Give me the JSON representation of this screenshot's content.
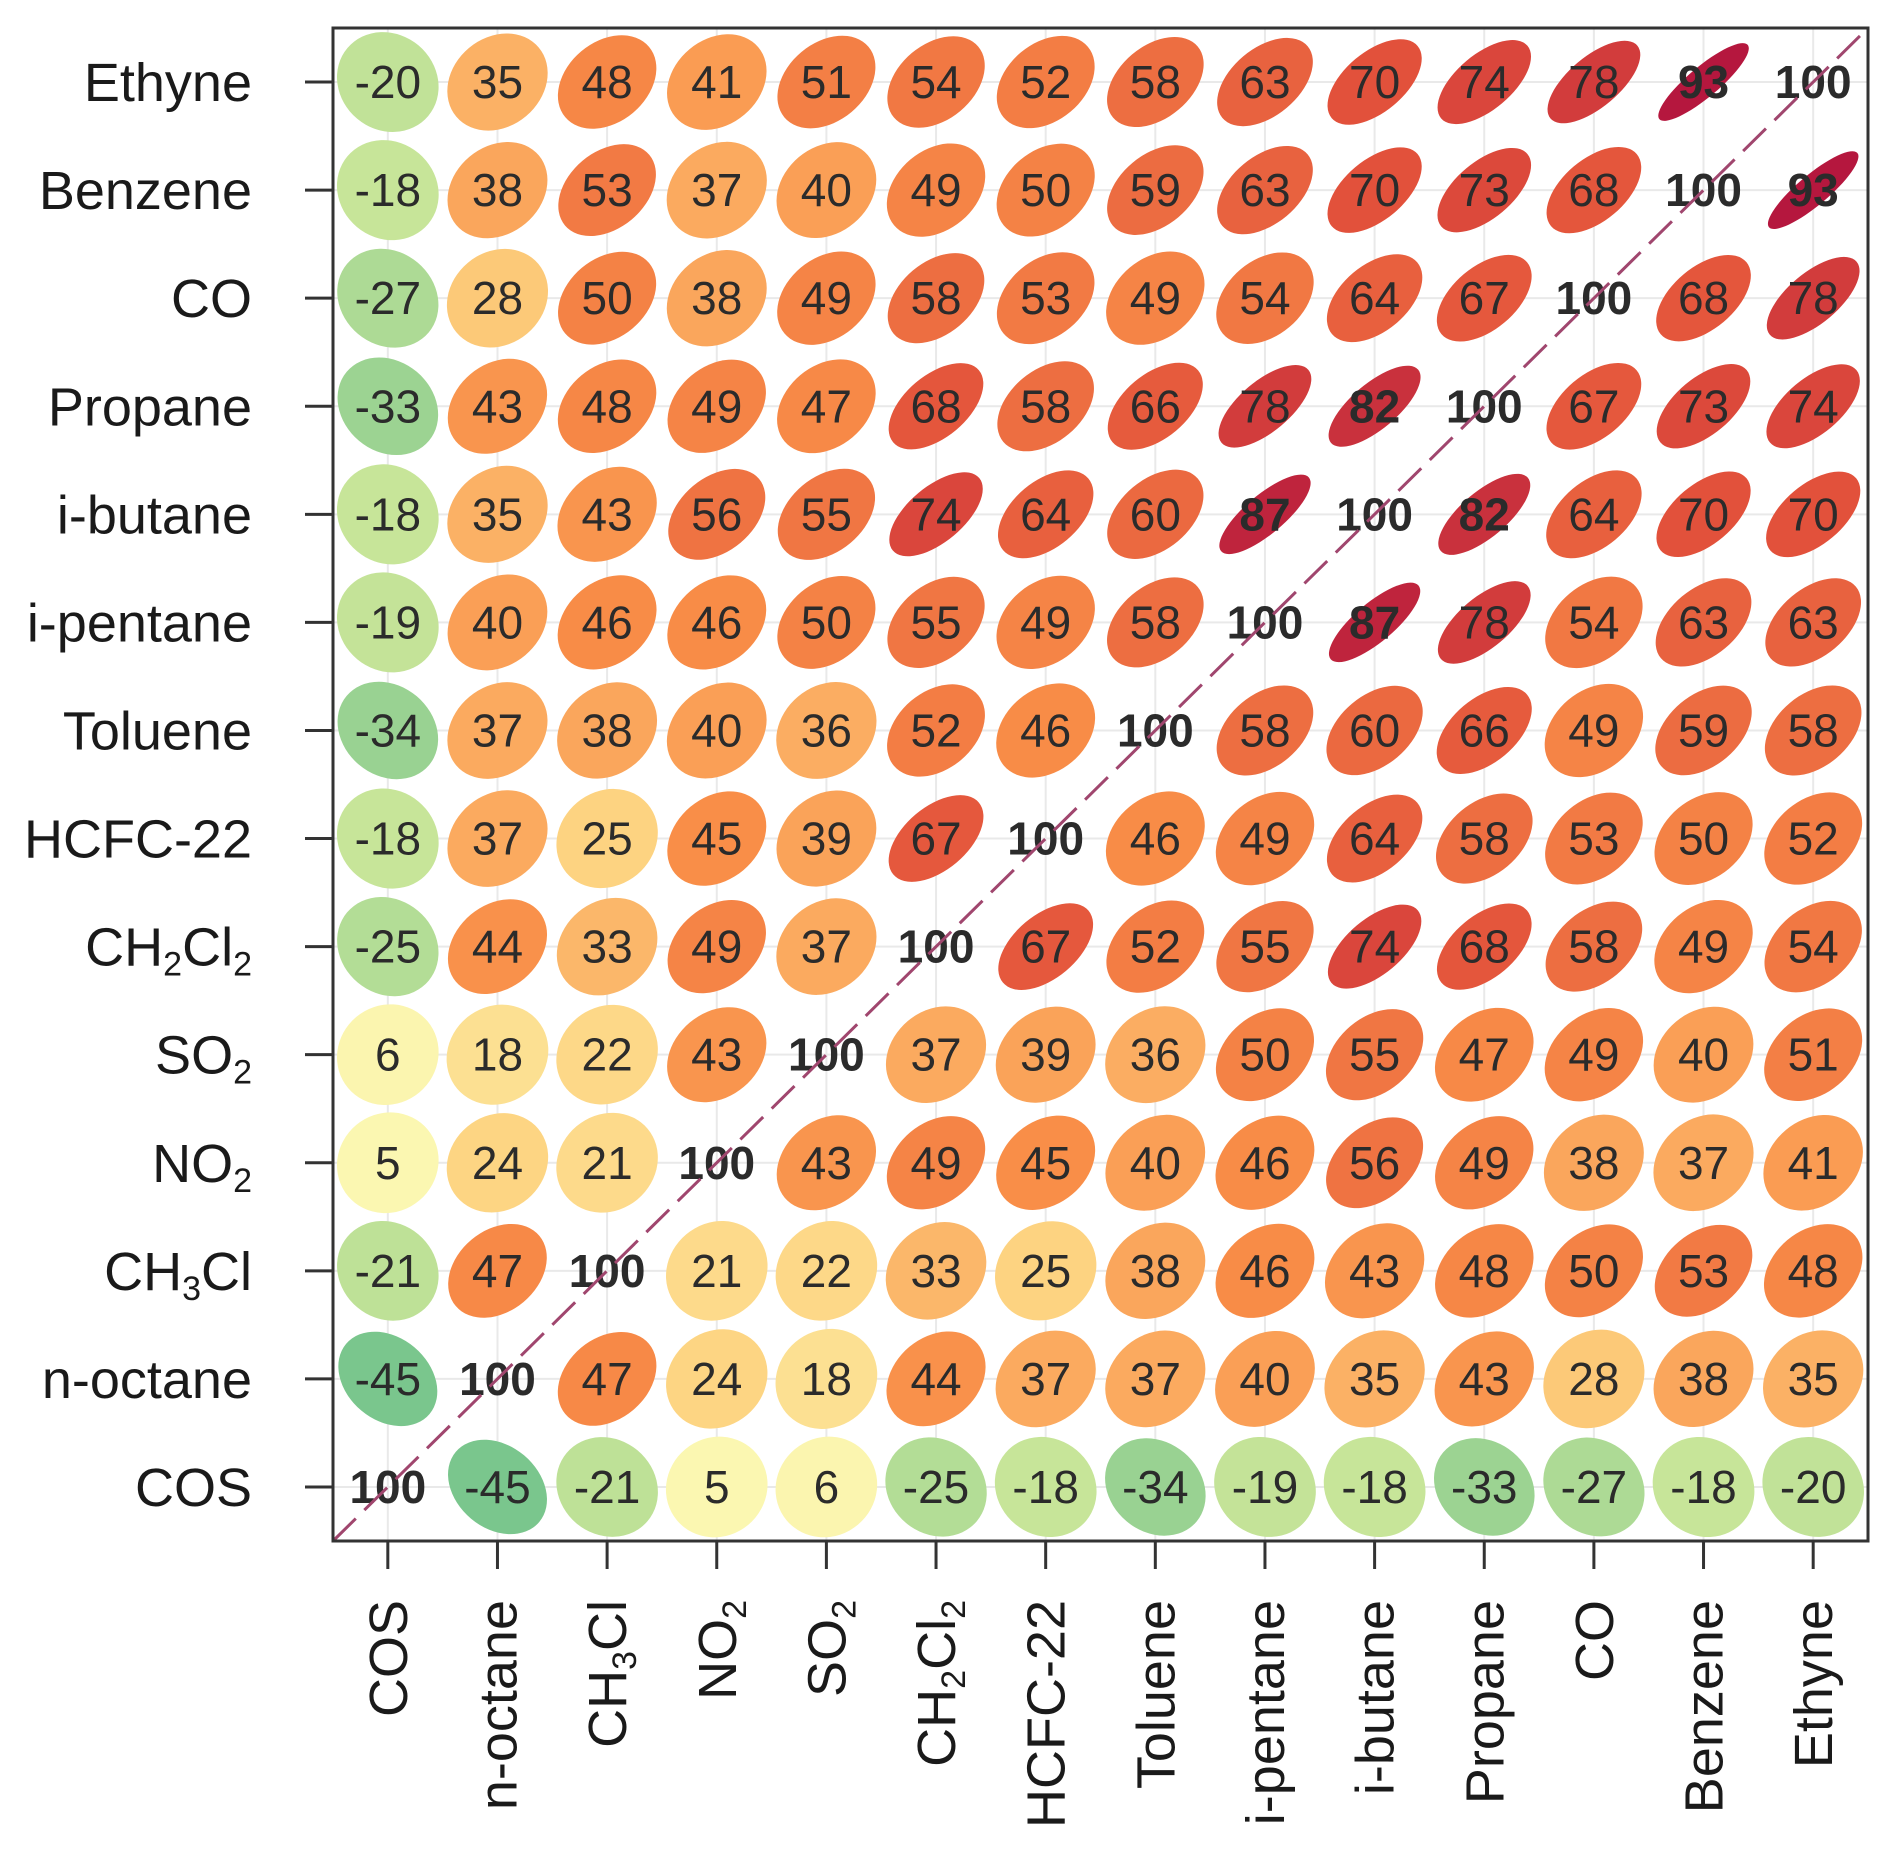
{
  "chart_data": {
    "type": "heatmap",
    "variables": [
      "COS",
      "n-octane",
      "CH₃Cl",
      "NO₂",
      "SO₂",
      "CH₂Cl₂",
      "HCFC-22",
      "Toluene",
      "i-pentane",
      "i-butane",
      "Propane",
      "CO",
      "Benzene",
      "Ethyne"
    ],
    "row_order": [
      "Ethyne",
      "Benzene",
      "CO",
      "Propane",
      "i-butane",
      "i-pentane",
      "Toluene",
      "HCFC-22",
      "CH₂Cl₂",
      "SO₂",
      "NO₂",
      "CH₃Cl",
      "n-octane",
      "COS"
    ],
    "matrix": [
      [
        100,
        -45,
        -21,
        5,
        6,
        -25,
        -18,
        -34,
        -19,
        -18,
        -33,
        -27,
        -18,
        -20
      ],
      [
        -45,
        100,
        47,
        24,
        18,
        44,
        37,
        37,
        40,
        35,
        43,
        28,
        38,
        35
      ],
      [
        -21,
        47,
        100,
        21,
        22,
        33,
        25,
        38,
        46,
        43,
        48,
        50,
        53,
        48
      ],
      [
        5,
        24,
        21,
        100,
        43,
        49,
        45,
        40,
        46,
        56,
        49,
        38,
        37,
        41
      ],
      [
        6,
        18,
        22,
        43,
        100,
        37,
        39,
        36,
        50,
        55,
        47,
        49,
        40,
        51
      ],
      [
        -25,
        44,
        33,
        49,
        37,
        100,
        67,
        52,
        55,
        74,
        68,
        58,
        49,
        54
      ],
      [
        -18,
        37,
        25,
        45,
        39,
        67,
        100,
        46,
        49,
        64,
        58,
        53,
        50,
        52
      ],
      [
        -34,
        37,
        38,
        40,
        36,
        52,
        46,
        100,
        58,
        60,
        66,
        49,
        59,
        58
      ],
      [
        -19,
        40,
        46,
        46,
        50,
        55,
        49,
        58,
        100,
        87,
        78,
        54,
        63,
        63
      ],
      [
        -18,
        35,
        43,
        56,
        55,
        74,
        64,
        60,
        87,
        100,
        82,
        64,
        70,
        70
      ],
      [
        -33,
        43,
        48,
        49,
        47,
        68,
        58,
        66,
        78,
        82,
        100,
        67,
        73,
        74
      ],
      [
        -27,
        28,
        50,
        38,
        49,
        58,
        53,
        49,
        54,
        64,
        67,
        100,
        68,
        78
      ],
      [
        -18,
        38,
        53,
        37,
        40,
        49,
        50,
        59,
        63,
        70,
        73,
        68,
        100,
        93
      ],
      [
        -20,
        35,
        48,
        41,
        51,
        54,
        52,
        58,
        63,
        70,
        74,
        78,
        93,
        100
      ]
    ],
    "diagonal_line": true,
    "grid": true,
    "colors": {
      "neg_strong": "#6cc08b",
      "neg_weak": "#cfe89a",
      "zero": "#fbf7b1",
      "low": "#fdd381",
      "mid": "#f98e48",
      "high": "#e2513b",
      "very_high": "#b5173e",
      "frame": "#333333",
      "diagonal": "#a0466e",
      "gridline": "#e9e9e9"
    }
  }
}
